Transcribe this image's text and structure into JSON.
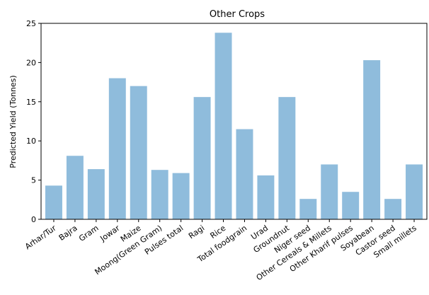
{
  "chart_data": {
    "type": "bar",
    "title": "Other Crops",
    "xlabel": "",
    "ylabel": "Predicted Yield (Tonnes)",
    "ylim": [
      0,
      25
    ],
    "yticks": [
      0,
      5,
      10,
      15,
      20,
      25
    ],
    "grid": false,
    "bar_color": "#8fbcdc",
    "categories": [
      "Arhar/Tur",
      "Bajra",
      "Gram",
      "Jowar",
      "Maize",
      "Moong(Green Gram)",
      "Pulses total",
      "Ragi",
      "Rice",
      "Total foodgrain",
      "Urad",
      "Groundnut",
      "Niger seed",
      "Other Cereals & Millets",
      "Other Kharif pulses",
      "Soyabean",
      "Castor seed",
      "Small millets"
    ],
    "values": [
      4.3,
      8.1,
      6.4,
      18.0,
      17.0,
      6.3,
      5.9,
      15.6,
      23.8,
      11.5,
      5.6,
      15.6,
      2.6,
      7.0,
      3.5,
      20.3,
      2.6,
      7.0
    ]
  }
}
